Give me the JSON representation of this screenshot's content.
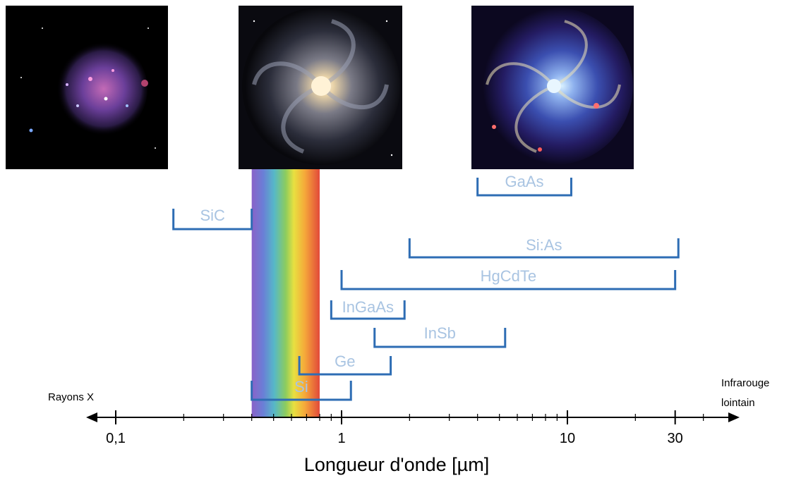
{
  "images": [
    {
      "name": "xray-galaxy-image",
      "band": "Rayons X"
    },
    {
      "name": "visible-galaxy-image",
      "band": "visible"
    },
    {
      "name": "infrared-galaxy-image",
      "band": "infrarouge"
    }
  ],
  "axis": {
    "title": "Longueur d'onde [µm]",
    "left_label": "Rayons X",
    "right_label_line1": "Infrarouge",
    "right_label_line2": "lointain",
    "scale": "log10",
    "ticks": [
      {
        "value": 0.1,
        "label": "0,1"
      },
      {
        "value": 1,
        "label": "1"
      },
      {
        "value": 10,
        "label": "10"
      },
      {
        "value": 30,
        "label": "30"
      }
    ],
    "colors": {
      "axis": "#000000",
      "bracket": "#2e6db4",
      "label": "#a9c4e2"
    }
  },
  "detectors": [
    {
      "name": "SiC",
      "min": 0.18,
      "max": 0.4
    },
    {
      "name": "GaAs",
      "min": 4.0,
      "max": 10.4
    },
    {
      "name": "Si:As",
      "min": 2.0,
      "max": 31.0
    },
    {
      "name": "HgCdTe",
      "min": 1.0,
      "max": 30.0
    },
    {
      "name": "InGaAs",
      "min": 0.9,
      "max": 1.9
    },
    {
      "name": "InSb",
      "min": 1.4,
      "max": 5.3
    },
    {
      "name": "Ge",
      "min": 0.65,
      "max": 1.65
    },
    {
      "name": "Si",
      "min": 0.4,
      "max": 1.1
    }
  ],
  "visible_band": {
    "min": 0.4,
    "max": 0.8
  }
}
